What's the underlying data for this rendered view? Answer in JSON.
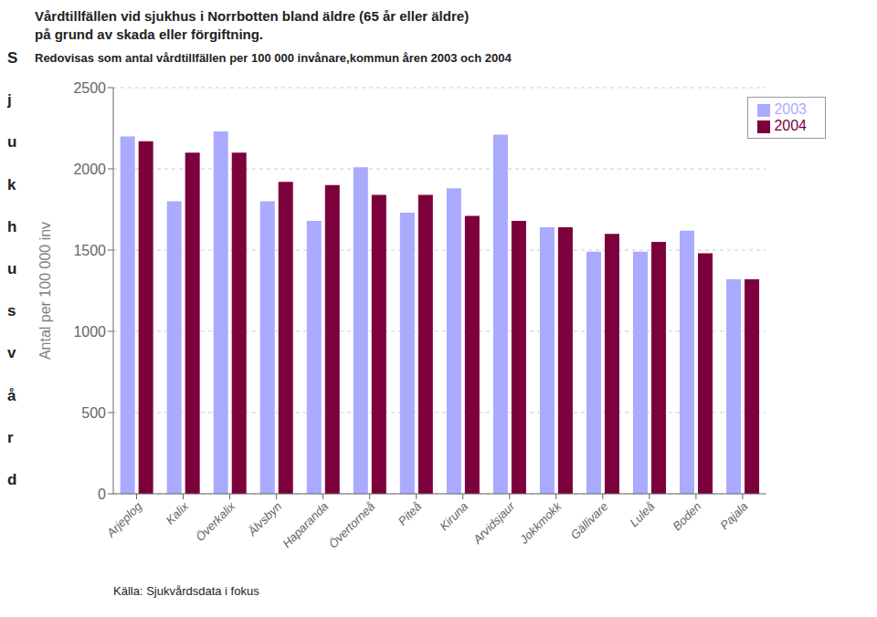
{
  "chart_data": {
    "type": "bar",
    "title": "Vårdtillfällen vid sjukhus i Norrbotten bland äldre (65 år eller äldre)\npå grund av skada eller förgiftning.",
    "subtitle": "Redovisas som antal vårdtillfällen per 100 000 invånare,kommun åren 2003 och 2004",
    "ylabel": "Antal per 100 000 inv",
    "annotations": [
      "Sjukhusvård",
      "Källa: Sjukvårdsdata i fokus"
    ],
    "categories": [
      "Arjeplog",
      "Kalix",
      "Överkalix",
      "Älvsbyn",
      "Haparanda",
      "Övertorneå",
      "Piteå",
      "Kiruna",
      "Arvidsjaur",
      "Jokkmokk",
      "Gällivare",
      "Luleå",
      "Boden",
      "Pajala"
    ],
    "series": [
      {
        "name": "2003",
        "color": "#aaaaff",
        "values": [
          2200,
          1800,
          2230,
          1800,
          1680,
          2010,
          1730,
          1880,
          2210,
          1640,
          1490,
          1490,
          1620,
          1320
        ]
      },
      {
        "name": "2004",
        "color": "#7b003c",
        "values": [
          2170,
          2100,
          2100,
          1920,
          1900,
          1840,
          1840,
          1710,
          1680,
          1640,
          1600,
          1550,
          1480,
          1320
        ]
      }
    ],
    "ylim": [
      0,
      2500
    ],
    "yticks": [
      0,
      500,
      1000,
      1500,
      2000,
      2500
    ],
    "grid": true,
    "legend": "upper right"
  }
}
